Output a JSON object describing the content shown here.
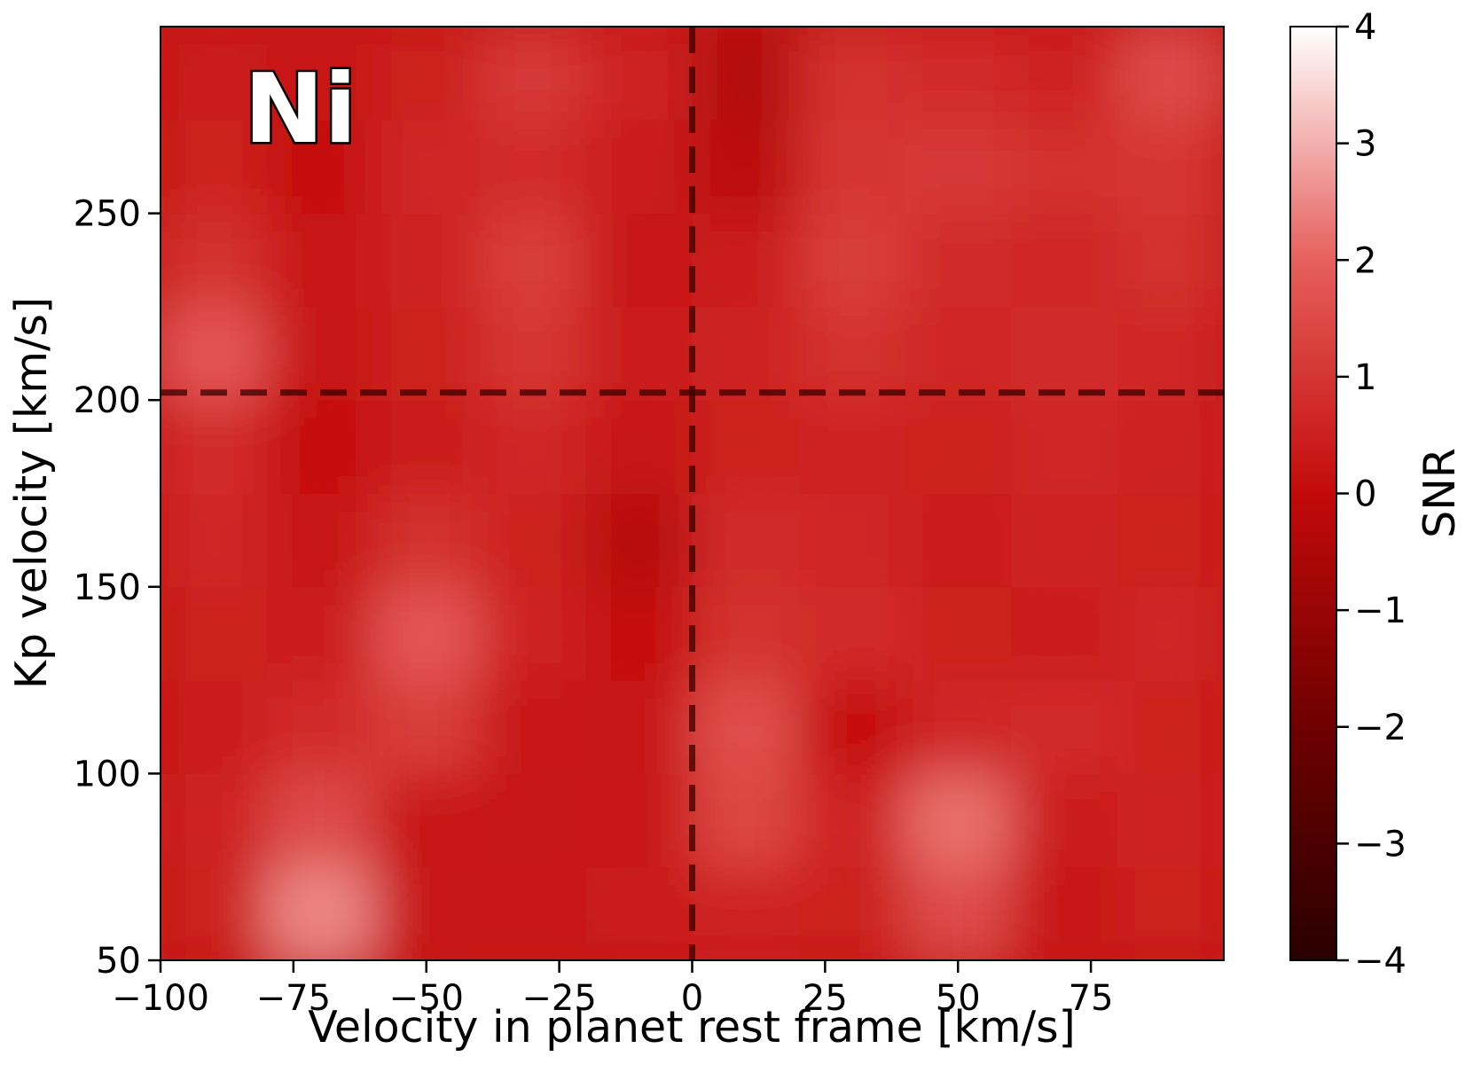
{
  "chart_data": {
    "type": "heatmap",
    "annotation": "Ni",
    "xlabel": "Velocity in planet rest frame [km/s]",
    "ylabel": "Kp velocity [km/s]",
    "colorbar_label": "SNR",
    "x": [
      -90,
      -70,
      -50,
      -30,
      -10,
      10,
      30,
      50,
      70,
      90
    ],
    "y": [
      62.5,
      87.5,
      112.5,
      137.5,
      162.5,
      187.5,
      212.5,
      237.5,
      262.5,
      287.5
    ],
    "z": [
      [
        0.5,
        2.5,
        0.2,
        0.3,
        0.4,
        0.6,
        0.5,
        1.5,
        0.3,
        0.5
      ],
      [
        0.6,
        1.5,
        0.3,
        0.2,
        0.3,
        1.4,
        0.6,
        2.2,
        0.4,
        0.6
      ],
      [
        0.4,
        0.8,
        1.2,
        0.3,
        0.2,
        1.6,
        0.1,
        0.7,
        0.8,
        0.5
      ],
      [
        0.5,
        0.4,
        1.8,
        0.6,
        0.1,
        0.9,
        0.8,
        0.5,
        0.4,
        0.7
      ],
      [
        0.7,
        0.2,
        0.9,
        0.5,
        -0.3,
        0.8,
        0.7,
        0.4,
        0.6,
        0.5
      ],
      [
        0.8,
        0.1,
        0.4,
        0.7,
        0.2,
        0.5,
        0.6,
        0.5,
        0.7,
        0.6
      ],
      [
        1.8,
        0.2,
        0.5,
        1.0,
        0.4,
        0.6,
        0.9,
        0.7,
        0.8,
        0.7
      ],
      [
        0.9,
        0.3,
        0.6,
        1.2,
        0.3,
        0.4,
        1.2,
        0.8,
        0.7,
        0.9
      ],
      [
        0.5,
        0.1,
        0.7,
        0.8,
        0.4,
        -0.2,
        1.0,
        1.1,
        0.9,
        1.0
      ],
      [
        0.4,
        0.3,
        0.5,
        1.1,
        0.6,
        -0.4,
        0.9,
        0.8,
        0.6,
        1.5
      ]
    ],
    "colormap": [
      "#2a0000",
      "#6e0000",
      "#c30a0a",
      "#e6605c",
      "#ffffff"
    ],
    "xlim": [
      -100,
      100
    ],
    "ylim": [
      50,
      300
    ],
    "clim": [
      -4,
      4
    ],
    "xticks": [
      {
        "value": -100,
        "label": "−100"
      },
      {
        "value": -75,
        "label": "−75"
      },
      {
        "value": -50,
        "label": "−50"
      },
      {
        "value": -25,
        "label": "−25"
      },
      0,
      25,
      50,
      75
    ],
    "yticks": [
      50,
      100,
      150,
      200,
      250
    ],
    "cticks": [
      {
        "value": -4,
        "label": "−4"
      },
      {
        "value": -3,
        "label": "−3"
      },
      {
        "value": -2,
        "label": "−2"
      },
      {
        "value": -1,
        "label": "−1"
      },
      0,
      1,
      2,
      3,
      4
    ],
    "vline": 0,
    "hline": 202
  }
}
